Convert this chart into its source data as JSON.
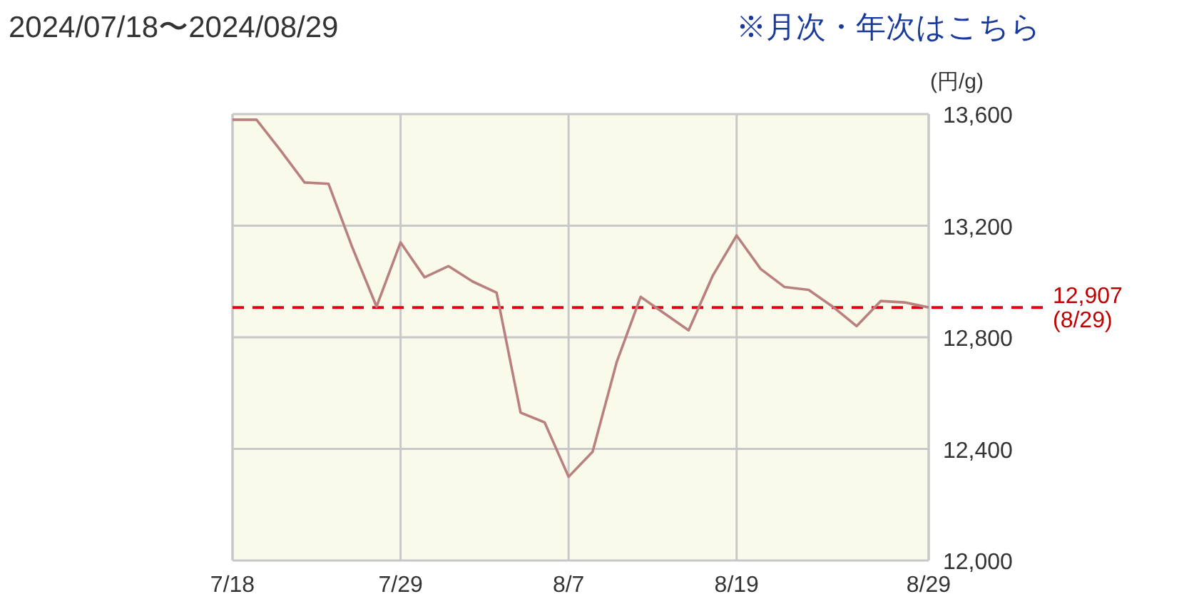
{
  "chart_data": {
    "type": "line",
    "title": "2024/07/18〜2024/08/29",
    "annotations": [
      "※月次・年次はこちら"
    ],
    "ylabel": "(円/g)",
    "categories": [
      "7/18",
      null,
      null,
      null,
      null,
      null,
      null,
      "7/29",
      null,
      null,
      null,
      null,
      null,
      null,
      "8/7",
      null,
      null,
      null,
      null,
      null,
      null,
      "8/19",
      null,
      null,
      null,
      null,
      null,
      null,
      null,
      "8/29"
    ],
    "series": [
      {
        "color": "#b98080",
        "values": [
          13580,
          13580,
          13470,
          13355,
          13350,
          13120,
          12910,
          13140,
          13015,
          13055,
          13000,
          12960,
          12530,
          12495,
          12300,
          12390,
          12710,
          12945,
          12885,
          12825,
          13020,
          13165,
          13045,
          12980,
          12970,
          12910,
          12840,
          12930,
          12925,
          12907
        ]
      }
    ],
    "ylim": [
      12000,
      13600
    ],
    "yticks": [
      {
        "value": 12000,
        "label": "12,000"
      },
      {
        "value": 12400,
        "label": "12,400"
      },
      {
        "value": 12800,
        "label": "12,800"
      },
      {
        "value": 13200,
        "label": "13,200"
      },
      {
        "value": 13600,
        "label": "13,600"
      }
    ],
    "ref_lines": [
      {
        "axis": "y",
        "value": 12907,
        "label": "12,907 (8/29)",
        "color": "#e00010",
        "line_style": "dashed"
      }
    ],
    "grid": true
  }
}
